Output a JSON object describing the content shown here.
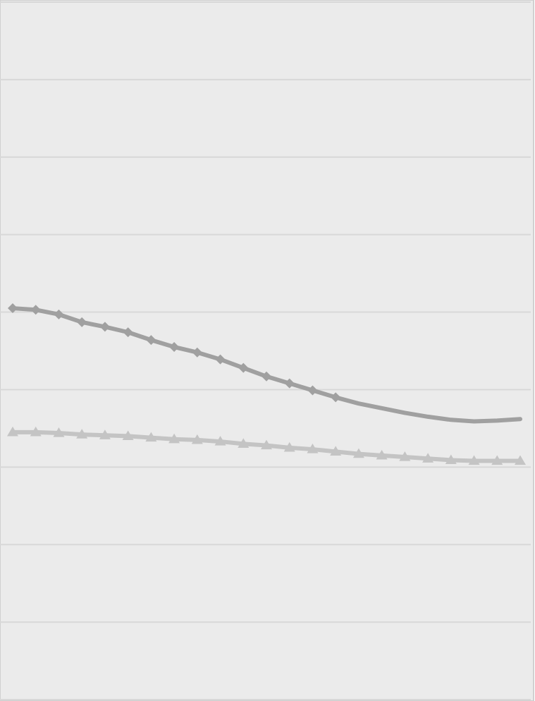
{
  "chart_data": {
    "type": "line",
    "title": "",
    "xlabel": "",
    "ylabel": "",
    "ylim": [
      0,
      9
    ],
    "grid": true,
    "legend": "none",
    "x": [
      1,
      2,
      3,
      4,
      5,
      6,
      7,
      8,
      9,
      10,
      11,
      12,
      13,
      14,
      15,
      16,
      17,
      18,
      19,
      20,
      21,
      22,
      23
    ],
    "series": [
      {
        "marker": "diamond",
        "color": "#a0a0a0",
        "values": [
          5.05,
          5.03,
          4.97,
          4.87,
          4.81,
          4.74,
          4.64,
          4.55,
          4.48,
          4.39,
          4.28,
          4.17,
          4.08,
          3.99,
          3.9,
          3.82,
          3.76,
          3.7,
          3.65,
          3.61,
          3.59,
          3.6,
          3.62
        ]
      },
      {
        "marker": "triangle",
        "color": "#c4c4c4",
        "values": [
          3.45,
          3.45,
          3.44,
          3.42,
          3.41,
          3.4,
          3.38,
          3.36,
          3.35,
          3.33,
          3.3,
          3.28,
          3.25,
          3.23,
          3.2,
          3.17,
          3.15,
          3.13,
          3.11,
          3.09,
          3.08,
          3.08,
          3.08
        ]
      }
    ],
    "background": "#ebebeb",
    "gridline_color": "#d8d8d8",
    "frame_color": "#d0d0d0"
  }
}
